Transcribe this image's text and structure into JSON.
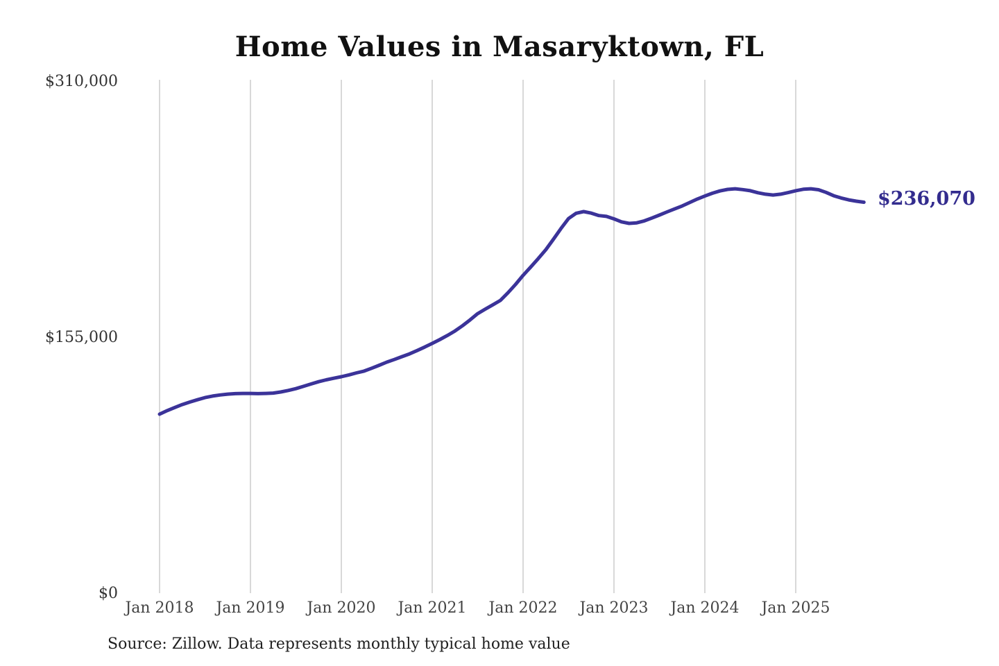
{
  "header": {
    "title": "Home Values in Masaryktown, FL"
  },
  "chart_data": {
    "type": "line",
    "title": "Home Values in Masaryktown, FL",
    "xlabel": "",
    "ylabel": "",
    "ylim": [
      0,
      310000
    ],
    "grid": "vertical-only",
    "legend": "none",
    "line_color": "#3b3399",
    "grid_color": "#cccccc",
    "end_label": "$236,070",
    "end_label_color": "#332c8e",
    "ytick_values": [
      0,
      155000,
      310000
    ],
    "ytick_labels": [
      "$0",
      "$155,000",
      "$310,000"
    ],
    "xtick_labels": [
      "Jan 2018",
      "Jan 2019",
      "Jan 2020",
      "Jan 2021",
      "Jan 2022",
      "Jan 2023",
      "Jan 2024",
      "Jan 2025"
    ],
    "x": [
      "2018-01",
      "2018-02",
      "2018-03",
      "2018-04",
      "2018-05",
      "2018-06",
      "2018-07",
      "2018-08",
      "2018-09",
      "2018-10",
      "2018-11",
      "2018-12",
      "2019-01",
      "2019-02",
      "2019-03",
      "2019-04",
      "2019-05",
      "2019-06",
      "2019-07",
      "2019-08",
      "2019-09",
      "2019-10",
      "2019-11",
      "2019-12",
      "2020-01",
      "2020-02",
      "2020-03",
      "2020-04",
      "2020-05",
      "2020-06",
      "2020-07",
      "2020-08",
      "2020-09",
      "2020-10",
      "2020-11",
      "2020-12",
      "2021-01",
      "2021-02",
      "2021-03",
      "2021-04",
      "2021-05",
      "2021-06",
      "2021-07",
      "2021-08",
      "2021-09",
      "2021-10",
      "2021-11",
      "2021-12",
      "2022-01",
      "2022-02",
      "2022-03",
      "2022-04",
      "2022-05",
      "2022-06",
      "2022-07",
      "2022-08",
      "2022-09",
      "2022-10",
      "2022-11",
      "2022-12",
      "2023-01",
      "2023-02",
      "2023-03",
      "2023-04",
      "2023-05",
      "2023-06",
      "2023-07",
      "2023-08",
      "2023-09",
      "2023-10",
      "2023-11",
      "2023-12",
      "2024-01",
      "2024-02",
      "2024-03",
      "2024-04",
      "2024-05",
      "2024-06",
      "2024-07",
      "2024-08",
      "2024-09",
      "2024-10",
      "2024-11",
      "2024-12",
      "2025-01",
      "2025-02",
      "2025-03",
      "2025-04",
      "2025-05",
      "2025-06",
      "2025-07",
      "2025-08",
      "2025-09",
      "2025-10"
    ],
    "series": [
      {
        "name": "Monthly typical home value",
        "values": [
          108100,
          110200,
          112100,
          113900,
          115400,
          116800,
          118100,
          119000,
          119700,
          120200,
          120500,
          120600,
          120600,
          120500,
          120600,
          120800,
          121500,
          122400,
          123500,
          124900,
          126300,
          127700,
          128800,
          129800,
          130700,
          131800,
          133000,
          134100,
          135800,
          137600,
          139500,
          141100,
          142800,
          144500,
          146500,
          148600,
          150800,
          153100,
          155600,
          158300,
          161500,
          165000,
          168800,
          171500,
          174100,
          176800,
          181400,
          186400,
          191900,
          196900,
          202000,
          207400,
          213700,
          220200,
          226200,
          229400,
          230400,
          229500,
          228000,
          227500,
          226000,
          224200,
          223300,
          223600,
          224800,
          226500,
          228300,
          230200,
          232000,
          233800,
          235900,
          238000,
          239800,
          241500,
          242900,
          243800,
          244200,
          243700,
          243000,
          241800,
          240900,
          240400,
          240900,
          241900,
          243000,
          243900,
          244200,
          243600,
          242000,
          240000,
          238600,
          237500,
          236700,
          236070
        ]
      }
    ]
  },
  "footer": {
    "source": "Source: Zillow. Data represents monthly typical home value"
  }
}
